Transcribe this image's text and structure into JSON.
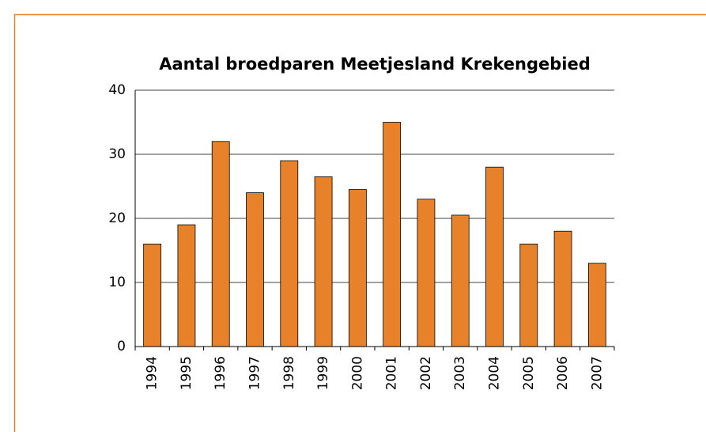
{
  "chart_data": {
    "type": "bar",
    "title": "Aantal broedparen Meetjesland Krekengebied",
    "categories": [
      "1994",
      "1995",
      "1996",
      "1997",
      "1998",
      "1999",
      "2000",
      "2001",
      "2002",
      "2003",
      "2004",
      "2005",
      "2006",
      "2007"
    ],
    "values": [
      16,
      19,
      32,
      24,
      29,
      26.5,
      24.5,
      35,
      23,
      20.5,
      28,
      16,
      18,
      13
    ],
    "color": "#e8822a",
    "ylim": [
      0,
      40
    ],
    "yticks": [
      0,
      10,
      20,
      30,
      40
    ],
    "grid": true
  }
}
